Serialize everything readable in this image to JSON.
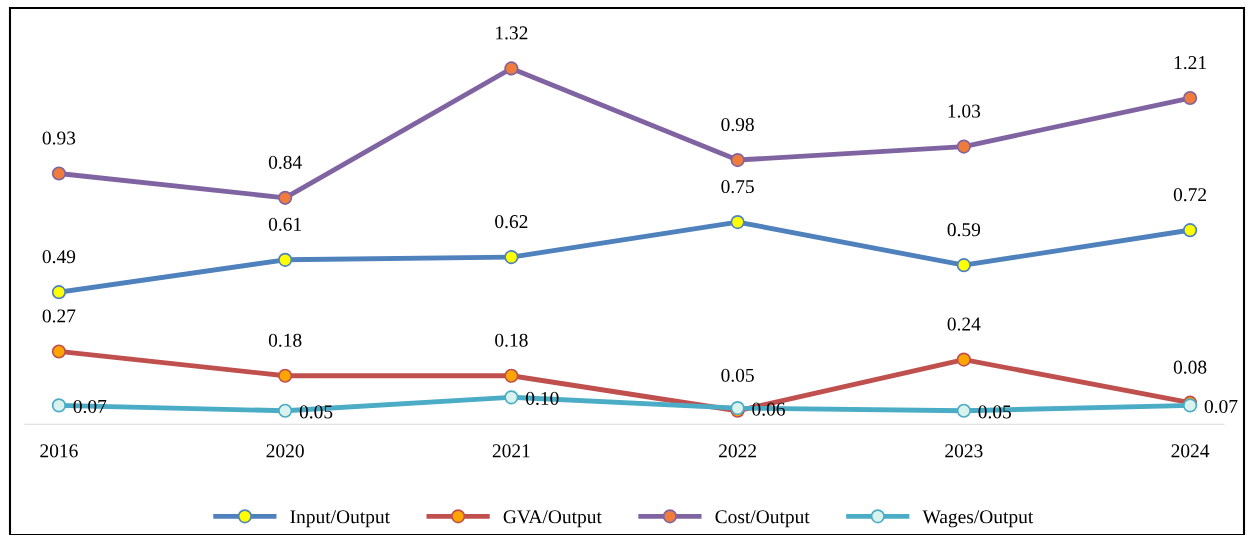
{
  "chart_data": {
    "type": "line",
    "categories": [
      "2016",
      "2020",
      "2021",
      "2022",
      "2023",
      "2024"
    ],
    "series": [
      {
        "name": "Input/Output",
        "color": "#4f81bd",
        "values": [
          0.49,
          0.61,
          0.62,
          0.75,
          0.59,
          0.72
        ]
      },
      {
        "name": "GVA/Output",
        "color": "#c0504d",
        "values": [
          0.27,
          0.18,
          0.18,
          0.05,
          0.24,
          0.08
        ]
      },
      {
        "name": "Cost/Output",
        "color": "#8064a2",
        "values": [
          0.93,
          0.84,
          1.32,
          0.98,
          1.03,
          1.21
        ]
      },
      {
        "name": "Wages/Output",
        "color": "#4bacc6",
        "values": [
          0.07,
          0.05,
          0.1,
          0.06,
          0.05,
          0.07
        ],
        "value_labels": [
          "0.07",
          "0.05",
          "0.10",
          "0.06",
          "0.05",
          "0.07"
        ]
      }
    ],
    "data_labels": true,
    "marker": "circle",
    "line_style": "solid",
    "legend": "bottom",
    "grid": false
  }
}
